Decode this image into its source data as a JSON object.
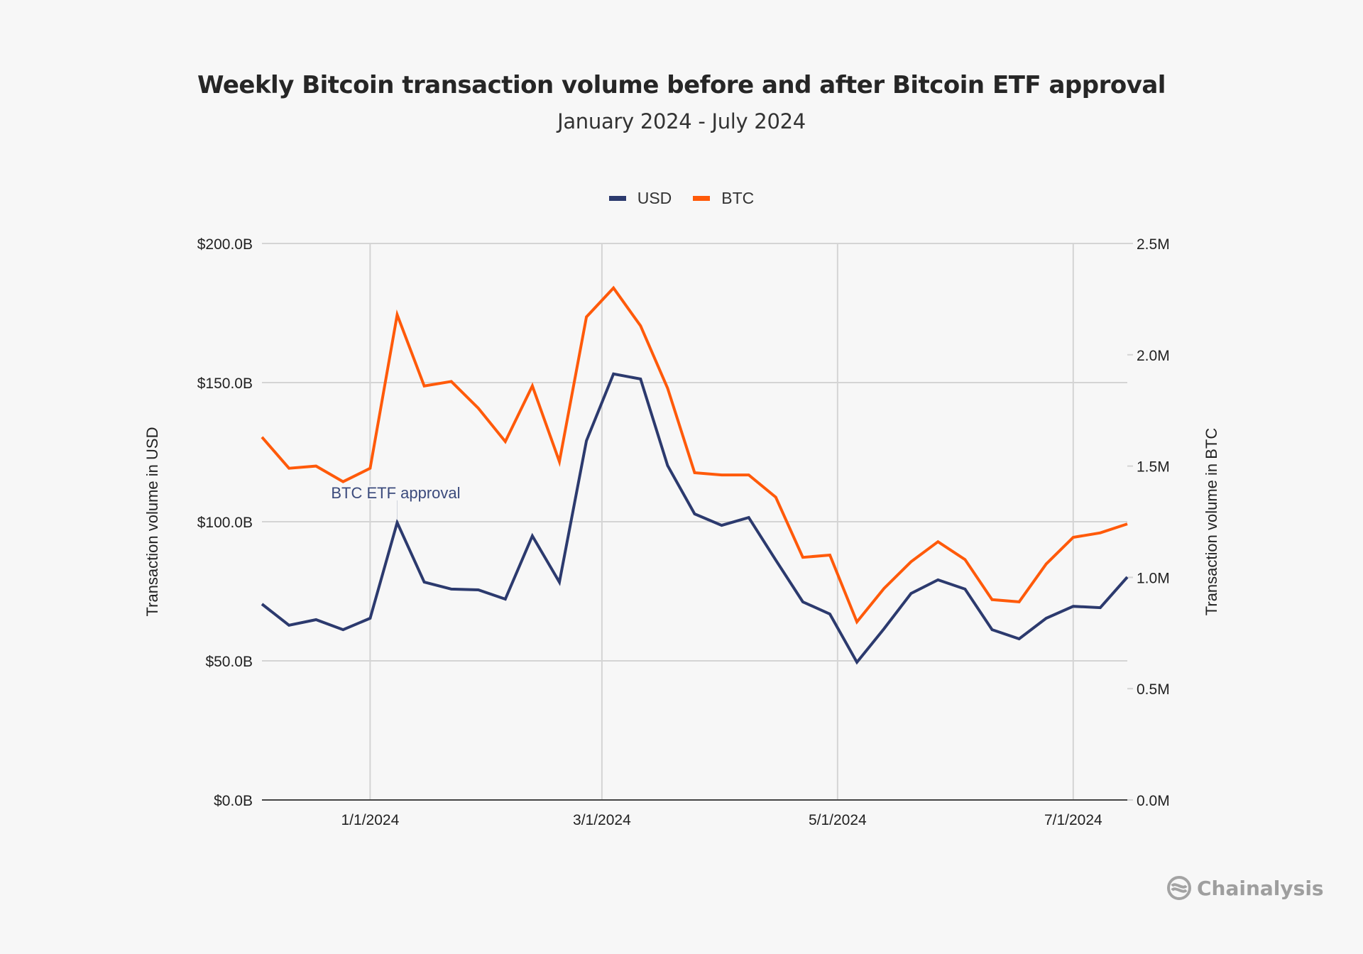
{
  "chart_data": {
    "type": "line",
    "title": "Weekly Bitcoin transaction volume before and after Bitcoin ETF approval",
    "subtitle": "January 2024 - July 2024",
    "xlabel": "",
    "ylabel": "Transaction volume in USD",
    "ylabel_right": "Transaction volume in BTC",
    "ylim": [
      0,
      200
    ],
    "ylim_right": [
      0,
      2.5
    ],
    "y_ticks": [
      "$0.0B",
      "$50.0B",
      "$100.0B",
      "$150.0B",
      "$200.0B"
    ],
    "y_tick_values": [
      0,
      50,
      100,
      150,
      200
    ],
    "y_ticks_right": [
      "0.0M",
      "0.5M",
      "1.0M",
      "1.5M",
      "2.0M",
      "2.5M"
    ],
    "y_tick_values_right": [
      0,
      0.5,
      1.0,
      1.5,
      2.0,
      2.5
    ],
    "x_ticks": [
      "1/1/2024",
      "3/1/2024",
      "5/1/2024",
      "7/1/2024"
    ],
    "x_tick_dates": [
      "2024-01-01",
      "2024-03-01",
      "2024-05-01",
      "2024-07-01"
    ],
    "grid": true,
    "legend_position": "top-center",
    "x": [
      "2023-12-04",
      "2023-12-11",
      "2023-12-18",
      "2023-12-25",
      "2024-01-01",
      "2024-01-08",
      "2024-01-15",
      "2024-01-22",
      "2024-01-29",
      "2024-02-05",
      "2024-02-12",
      "2024-02-19",
      "2024-02-26",
      "2024-03-04",
      "2024-03-11",
      "2024-03-18",
      "2024-03-25",
      "2024-04-01",
      "2024-04-08",
      "2024-04-15",
      "2024-04-22",
      "2024-04-29",
      "2024-05-06",
      "2024-05-13",
      "2024-05-20",
      "2024-05-27",
      "2024-06-03",
      "2024-06-10",
      "2024-06-17",
      "2024-06-24",
      "2024-07-01",
      "2024-07-08",
      "2024-07-15"
    ],
    "series": [
      {
        "name": "USD",
        "axis": "left",
        "unit": "billion USD",
        "color": "#2c3a6e",
        "values": [
          70.4,
          62.8,
          64.8,
          61.2,
          65.3,
          99.7,
          78.3,
          75.8,
          75.5,
          72.2,
          94.9,
          78.3,
          129.1,
          153.1,
          151.3,
          120.2,
          102.8,
          98.7,
          101.5,
          86.2,
          71.2,
          66.8,
          49.5,
          61.5,
          74.2,
          79.1,
          75.8,
          61.2,
          57.9,
          65.3,
          69.6,
          69.1,
          80.1
        ]
      },
      {
        "name": "BTC",
        "axis": "right",
        "unit": "million BTC",
        "color": "#ff5a0a",
        "values": [
          1.63,
          1.49,
          1.5,
          1.43,
          1.49,
          2.18,
          1.86,
          1.88,
          1.76,
          1.61,
          1.86,
          1.52,
          2.17,
          2.3,
          2.13,
          1.85,
          1.47,
          1.46,
          1.46,
          1.36,
          1.09,
          1.1,
          0.8,
          0.95,
          1.07,
          1.16,
          1.08,
          0.9,
          0.89,
          1.06,
          1.18,
          1.2,
          1.24
        ]
      }
    ],
    "annotations": [
      {
        "text": "BTC ETF approval",
        "date": "2024-01-08",
        "color": "#3b4a7c"
      }
    ]
  },
  "brand": {
    "logo_text": "Chainalysis",
    "logo_icon": "chainalysis-logo-icon"
  }
}
